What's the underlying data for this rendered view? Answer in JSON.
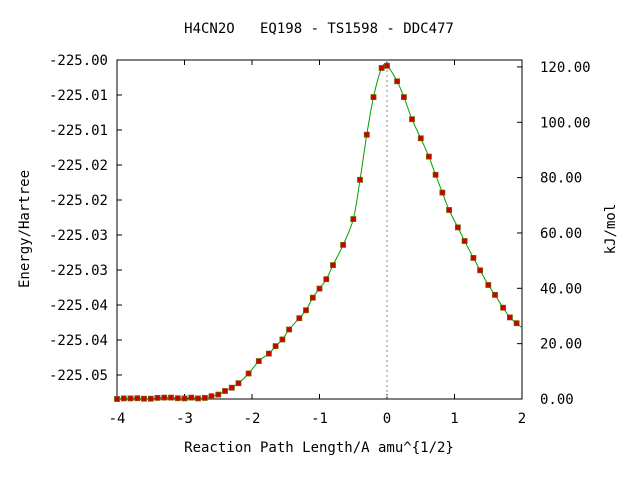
{
  "chart_data": {
    "type": "line",
    "title": "H4CN2O   EQ198 - TS1598 - DDC477",
    "xlabel": "Reaction Path Length/A amu^{1/2}",
    "ylabel_left": "Energy/Hartree",
    "ylabel_right": "kJ/mol",
    "xlim": [
      -4,
      2
    ],
    "x_ticks": [
      "-4",
      "-3",
      "-2",
      "-1",
      "0",
      "1",
      "2"
    ],
    "y_left_ticks": [
      "-225.00",
      "-225.01",
      "-225.01",
      "-225.02",
      "-225.02",
      "-225.03",
      "-225.03",
      "-225.04",
      "-225.04",
      "-225.05"
    ],
    "y_right_ticks": [
      "120.00",
      "100.00",
      "80.00",
      "60.00",
      "40.00",
      "20.00",
      "0.00"
    ],
    "y_right_lim": [
      0,
      122.5
    ],
    "ts_x": 0.0,
    "grid": false,
    "series": [
      {
        "color": "#cc0000",
        "line_color": "#00a000",
        "x": [
          -4.0,
          -3.9,
          -3.8,
          -3.7,
          -3.6,
          -3.5,
          -3.4,
          -3.3,
          -3.2,
          -3.1,
          -3.0,
          -2.9,
          -2.8,
          -2.7,
          -2.6,
          -2.5,
          -2.4,
          -2.3,
          -2.2,
          -2.05,
          -1.9,
          -1.75,
          -1.65,
          -1.55,
          -1.45,
          -1.3,
          -1.2,
          -1.1,
          -1.0,
          -0.9,
          -0.8,
          -0.65,
          -0.5,
          -0.4,
          -0.3,
          -0.2,
          -0.08,
          0.0,
          0.15,
          0.25,
          0.37,
          0.5,
          0.62,
          0.72,
          0.82,
          0.92,
          1.05,
          1.15,
          1.28,
          1.38,
          1.5,
          1.6,
          1.72,
          1.82,
          1.92
        ],
        "y": [
          0.0,
          0.2,
          0.2,
          0.3,
          0.1,
          0.1,
          0.4,
          0.5,
          0.5,
          0.3,
          0.2,
          0.5,
          0.2,
          0.4,
          1.0,
          1.6,
          2.9,
          4.1,
          5.7,
          9.2,
          13.7,
          16.4,
          19.1,
          21.5,
          25.1,
          29.2,
          32.1,
          36.6,
          39.9,
          43.3,
          48.4,
          55.7,
          65.0,
          79.2,
          95.5,
          109.1,
          119.6,
          120.4,
          114.8,
          109.1,
          101.1,
          94.2,
          87.6,
          81.0,
          74.6,
          68.3,
          62.0,
          57.1,
          51.0,
          46.5,
          41.2,
          37.6,
          33.0,
          29.5,
          27.4
        ]
      }
    ]
  }
}
